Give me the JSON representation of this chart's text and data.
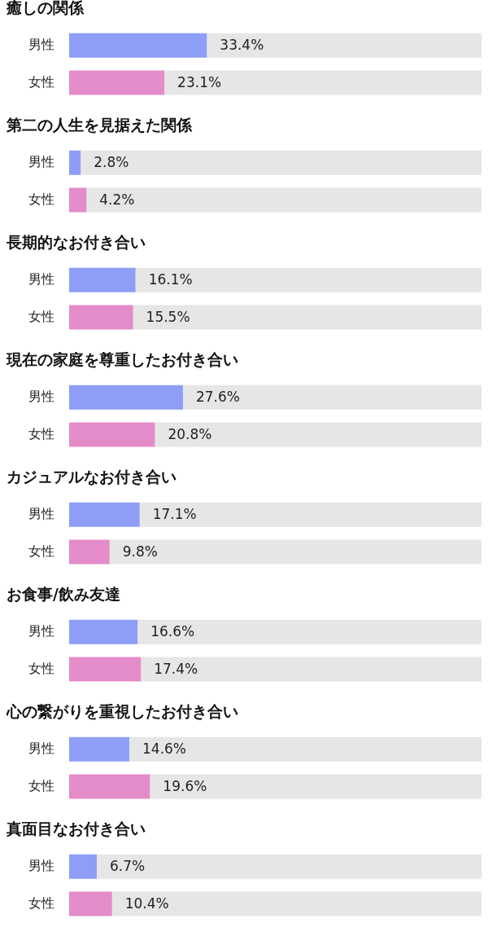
{
  "chart_data": [
    {
      "type": "bar",
      "orientation": "horizontal",
      "stacked": true,
      "title": "癒しの関係",
      "categories": [
        "男性",
        "女性"
      ],
      "tick_labels": "y",
      "series": [
        {
          "colors": [
            "#8e9ef6",
            "#e38cc9"
          ],
          "values": [
            33.4,
            23.1
          ],
          "value_labels": [
            "33.4%",
            "23.1%"
          ]
        },
        {
          "color": "#e6e6e6",
          "values": [
            66.6,
            76.9
          ]
        }
      ]
    },
    {
      "type": "bar",
      "orientation": "horizontal",
      "stacked": true,
      "title": "第二の人生を見据えた関係",
      "categories": [
        "男性",
        "女性"
      ],
      "tick_labels": "y",
      "series": [
        {
          "colors": [
            "#8e9ef6",
            "#e38cc9"
          ],
          "values": [
            2.8,
            4.2
          ],
          "value_labels": [
            "2.8%",
            "4.2%"
          ]
        },
        {
          "color": "#e6e6e6",
          "values": [
            97.2,
            95.8
          ]
        }
      ]
    },
    {
      "type": "bar",
      "orientation": "horizontal",
      "stacked": true,
      "title": "長期的なお付き合い",
      "categories": [
        "男性",
        "女性"
      ],
      "tick_labels": "y",
      "series": [
        {
          "colors": [
            "#8e9ef6",
            "#e38cc9"
          ],
          "values": [
            16.1,
            15.5
          ],
          "value_labels": [
            "16.1%",
            "15.5%"
          ]
        },
        {
          "color": "#e6e6e6",
          "values": [
            83.9,
            84.5
          ]
        }
      ]
    },
    {
      "type": "bar",
      "orientation": "horizontal",
      "stacked": true,
      "title": "現在の家庭を尊重したお付き合い",
      "categories": [
        "男性",
        "女性"
      ],
      "tick_labels": "y",
      "series": [
        {
          "colors": [
            "#8e9ef6",
            "#e38cc9"
          ],
          "values": [
            27.6,
            20.8
          ],
          "value_labels": [
            "27.6%",
            "20.8%"
          ]
        },
        {
          "color": "#e6e6e6",
          "values": [
            72.4,
            79.2
          ]
        }
      ]
    },
    {
      "type": "bar",
      "orientation": "horizontal",
      "stacked": true,
      "title": "カジュアルなお付き合い",
      "categories": [
        "男性",
        "女性"
      ],
      "tick_labels": "y",
      "series": [
        {
          "colors": [
            "#8e9ef6",
            "#e38cc9"
          ],
          "values": [
            17.1,
            9.8
          ],
          "value_labels": [
            "17.1%",
            "9.8%"
          ]
        },
        {
          "color": "#e6e6e6",
          "values": [
            82.9,
            90.2
          ]
        }
      ]
    },
    {
      "type": "bar",
      "orientation": "horizontal",
      "stacked": true,
      "title": "お食事/飲み友達",
      "categories": [
        "男性",
        "女性"
      ],
      "tick_labels": "y",
      "series": [
        {
          "colors": [
            "#8e9ef6",
            "#e38cc9"
          ],
          "values": [
            16.6,
            17.4
          ],
          "value_labels": [
            "16.6%",
            "17.4%"
          ]
        },
        {
          "color": "#e6e6e6",
          "values": [
            83.4,
            82.6
          ]
        }
      ]
    },
    {
      "type": "bar",
      "orientation": "horizontal",
      "stacked": true,
      "title": "心の繋がりを重視したお付き合い",
      "categories": [
        "男性",
        "女性"
      ],
      "tick_labels": "y",
      "series": [
        {
          "colors": [
            "#8e9ef6",
            "#e38cc9"
          ],
          "values": [
            14.6,
            19.6
          ],
          "value_labels": [
            "14.6%",
            "19.6%"
          ]
        },
        {
          "color": "#e6e6e6",
          "values": [
            85.4,
            80.4
          ]
        }
      ]
    },
    {
      "type": "bar",
      "orientation": "horizontal",
      "stacked": true,
      "title": "真面目なお付き合い",
      "categories": [
        "男性",
        "女性"
      ],
      "tick_labels": "y",
      "series": [
        {
          "colors": [
            "#8e9ef6",
            "#e38cc9"
          ],
          "values": [
            6.7,
            10.4
          ],
          "value_labels": [
            "6.7%",
            "10.4%"
          ]
        },
        {
          "color": "#e6e6e6",
          "values": [
            93.3,
            89.6
          ]
        }
      ]
    }
  ]
}
